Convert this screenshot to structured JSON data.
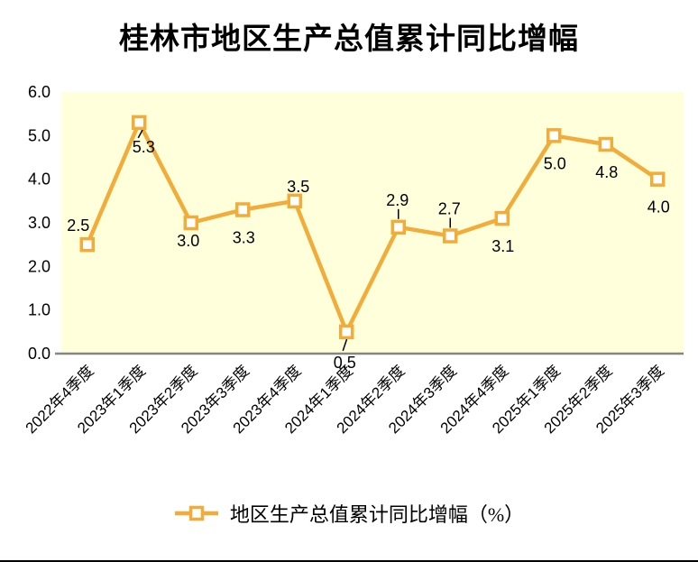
{
  "page": {
    "background": "#FFFFFF",
    "bottom_border_color": "#000000"
  },
  "chart": {
    "title": "桂林市地区生产总值累计同比增幅",
    "legend_label": "地区生产总值累计同比增幅（%）"
  },
  "chart_data": {
    "type": "line",
    "title": "桂林市地区生产总值累计同比增幅",
    "categories": [
      "2022年4季度",
      "2023年1季度",
      "2023年2季度",
      "2023年3季度",
      "2023年4季度",
      "2024年1季度",
      "2024年2季度",
      "2024年3季度",
      "2024年4季度",
      "2025年1季度",
      "2025年2季度",
      "2025年3季度"
    ],
    "series": [
      {
        "name": "地区生产总值累计同比增幅（%）",
        "values": [
          2.5,
          5.3,
          3.0,
          3.3,
          3.5,
          0.5,
          2.9,
          2.7,
          3.1,
          5.0,
          4.8,
          4.0
        ]
      }
    ],
    "point_labels": [
      "2.5",
      "5.3",
      "3.0",
      "3.3",
      "3.5",
      "0.5",
      "2.9",
      "2.7",
      "3.1",
      "5.0",
      "4.8",
      "4.0"
    ],
    "xlabel": "",
    "ylabel": "",
    "ylim": [
      0.0,
      6.0
    ],
    "ytick_labels": [
      "0.0",
      "1.0",
      "2.0",
      "3.0",
      "4.0",
      "5.0",
      "6.0"
    ],
    "grid": false,
    "legend_position": "bottom",
    "marker": "square",
    "label_placement": [
      "above-left",
      "below-leader",
      "below-near",
      "below",
      "above",
      "below-axis-leader",
      "above-leader",
      "above-leader",
      "below",
      "below",
      "below",
      "below"
    ],
    "colors": {
      "line": "#F2AC3A",
      "marker_fill": "#FFFFFF",
      "plot_background": "#FFFFDB",
      "axis_line": "#858585",
      "text": "#000000"
    }
  }
}
